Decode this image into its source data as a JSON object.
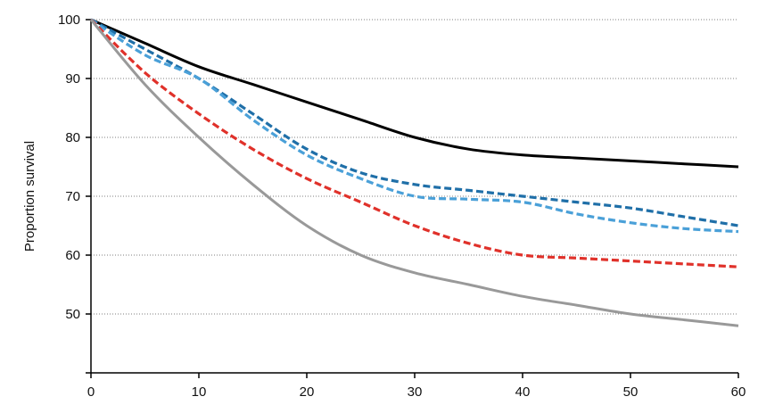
{
  "chart_data": {
    "type": "line",
    "title": "",
    "xlabel": "",
    "ylabel": "Proportion survival",
    "xlim": [
      0,
      60
    ],
    "ylim": [
      40,
      100
    ],
    "x_ticks": [
      0,
      10,
      20,
      30,
      40,
      50,
      60
    ],
    "y_ticks": [
      50,
      60,
      70,
      80,
      90,
      100
    ],
    "grid": {
      "horizontal": true,
      "style": "dotted"
    },
    "legend": "none",
    "x": [
      0,
      5,
      10,
      15,
      20,
      25,
      30,
      35,
      40,
      45,
      50,
      55,
      60
    ],
    "series": [
      {
        "color": "#000000",
        "dash": "solid",
        "values": [
          100,
          96,
          92,
          89,
          86,
          83,
          80,
          78,
          77,
          76.5,
          76,
          75.5,
          75
        ]
      },
      {
        "color": "#1f6fa8",
        "dash": "dashed",
        "values": [
          100,
          95,
          90,
          84,
          78,
          74,
          72,
          71,
          70,
          69,
          68,
          66.5,
          65
        ]
      },
      {
        "color": "#4aa0d8",
        "dash": "dashed",
        "values": [
          100,
          94,
          90,
          83,
          77,
          73,
          70,
          69.5,
          69,
          67,
          65.5,
          64.5,
          64
        ]
      },
      {
        "color": "#e0312a",
        "dash": "dashed",
        "values": [
          100,
          91,
          84,
          78,
          73,
          69,
          65,
          62,
          60,
          59.5,
          59,
          58.5,
          58
        ]
      },
      {
        "color": "#999999",
        "dash": "solid",
        "values": [
          100,
          89,
          80,
          72,
          65,
          60,
          57,
          55,
          53,
          51.5,
          50,
          49,
          48
        ]
      }
    ]
  }
}
